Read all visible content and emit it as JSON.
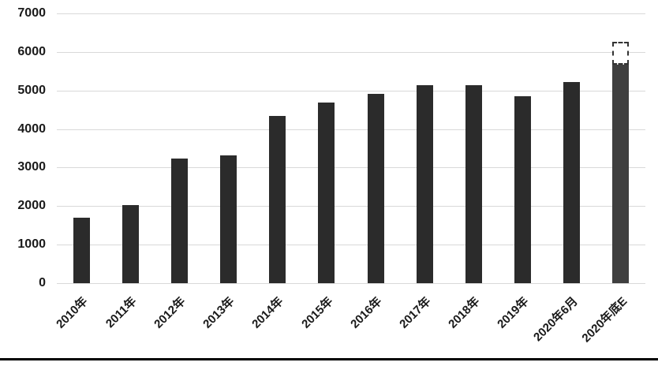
{
  "chart_data": {
    "type": "bar",
    "title": "",
    "xlabel": "",
    "ylabel": "",
    "categories": [
      "2010年",
      "2011年",
      "2012年",
      "2013年",
      "2014年",
      "2015年",
      "2016年",
      "2017年",
      "2018年",
      "2019年",
      "2020年6月",
      "2020年底E"
    ],
    "values": [
      1690,
      2030,
      3240,
      3320,
      4330,
      4680,
      4910,
      5130,
      5140,
      4860,
      5220,
      5670
    ],
    "estimate_bar": {
      "category": "2020年底E",
      "solid_value": 5670,
      "estimated_total": 6270,
      "style": "dashed-outline-cap-on-top-of-last-bar"
    },
    "ylim": [
      0,
      7000
    ],
    "y_ticks": [
      0,
      1000,
      2000,
      3000,
      4000,
      5000,
      6000,
      7000
    ],
    "grid": "horizontal",
    "legend": "none",
    "x_tick_rotation": 45,
    "colors": {
      "bar": "#2b2b2b",
      "estimate_bar": "#3f3f3f",
      "estimate_cap_border": "#333333",
      "gridline": "#d9d9d9",
      "tick_label": "#1a1a1a",
      "bottom_rule": "#000000",
      "background": "#ffffff"
    }
  }
}
